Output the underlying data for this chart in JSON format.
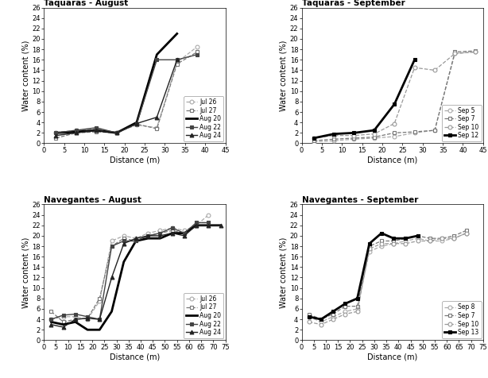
{
  "panels": [
    {
      "title": "Taquaras - August",
      "xlabel": "Distance (m)",
      "ylabel": "Water content (%)",
      "xlim": [
        0,
        45
      ],
      "ylim": [
        0,
        26
      ],
      "xticks": [
        0,
        5,
        10,
        15,
        20,
        25,
        30,
        35,
        40,
        45
      ],
      "yticks": [
        0,
        2,
        4,
        6,
        8,
        10,
        12,
        14,
        16,
        18,
        20,
        22,
        24,
        26
      ],
      "series": [
        {
          "label": "Jul 26",
          "x": [
            3,
            8,
            13,
            18,
            23,
            28,
            33,
            38
          ],
          "y": [
            2.1,
            2.5,
            2.8,
            2.1,
            3.5,
            3.0,
            15.5,
            18.5
          ],
          "color": "#aaaaaa",
          "linestyle": "--",
          "marker": "o",
          "markerfill": "none",
          "linewidth": 0.9
        },
        {
          "label": "Jul 27",
          "x": [
            3,
            8,
            13,
            18,
            23,
            28,
            33,
            38
          ],
          "y": [
            1.0,
            2.0,
            2.2,
            2.0,
            3.7,
            2.8,
            15.2,
            17.5
          ],
          "color": "#777777",
          "linestyle": "--",
          "marker": "s",
          "markerfill": "none",
          "linewidth": 0.9
        },
        {
          "label": "Aug 20",
          "x": [
            3,
            8,
            13,
            18,
            23,
            28,
            33
          ],
          "y": [
            2.0,
            2.2,
            2.5,
            2.0,
            4.0,
            17.0,
            21.0
          ],
          "color": "#000000",
          "linestyle": "-",
          "marker": null,
          "markerfill": "full",
          "linewidth": 2.0
        },
        {
          "label": "Aug 22",
          "x": [
            3,
            8,
            13,
            18,
            23,
            28,
            33,
            38
          ],
          "y": [
            2.0,
            2.5,
            3.0,
            2.0,
            3.7,
            16.0,
            16.0,
            17.0
          ],
          "color": "#444444",
          "linestyle": "-",
          "marker": "s",
          "markerfill": "full",
          "linewidth": 1.0
        },
        {
          "label": "Aug 24",
          "x": [
            3,
            8,
            13,
            18,
            23,
            28,
            33
          ],
          "y": [
            1.5,
            2.0,
            2.5,
            2.0,
            3.8,
            5.0,
            16.0
          ],
          "color": "#222222",
          "linestyle": "-",
          "marker": "^",
          "markerfill": "full",
          "linewidth": 1.0
        }
      ]
    },
    {
      "title": "Taquaras - September",
      "xlabel": "Distance (m)",
      "ylabel": "Water content (%)",
      "xlim": [
        0,
        45
      ],
      "ylim": [
        0,
        26
      ],
      "xticks": [
        0,
        5,
        10,
        15,
        20,
        25,
        30,
        35,
        40,
        45
      ],
      "yticks": [
        0,
        2,
        4,
        6,
        8,
        10,
        12,
        14,
        16,
        18,
        20,
        22,
        24,
        26
      ],
      "series": [
        {
          "label": "Sep 5",
          "x": [
            3,
            8,
            13,
            18,
            23,
            28,
            33,
            38,
            43
          ],
          "y": [
            0.3,
            0.5,
            0.8,
            1.0,
            1.3,
            2.0,
            2.5,
            17.2,
            17.5
          ],
          "color": "#aaaaaa",
          "linestyle": "--",
          "marker": "o",
          "markerfill": "none",
          "linewidth": 0.9
        },
        {
          "label": "Sep 7",
          "x": [
            3,
            8,
            13,
            18,
            23,
            28,
            33,
            38,
            43
          ],
          "y": [
            0.5,
            0.8,
            1.0,
            1.2,
            2.0,
            2.2,
            2.5,
            17.5,
            17.7
          ],
          "color": "#777777",
          "linestyle": "--",
          "marker": "s",
          "markerfill": "none",
          "linewidth": 0.9
        },
        {
          "label": "Sep 10",
          "x": [
            3,
            8,
            13,
            18,
            23,
            28,
            33,
            38,
            43
          ],
          "y": [
            1.0,
            1.5,
            1.5,
            1.8,
            3.8,
            14.5,
            14.0,
            17.2,
            17.5
          ],
          "color": "#999999",
          "linestyle": "--",
          "marker": "o",
          "markerfill": "none",
          "linewidth": 0.9
        },
        {
          "label": "Sep 12",
          "x": [
            3,
            8,
            13,
            18,
            23,
            28
          ],
          "y": [
            1.0,
            1.8,
            2.0,
            2.5,
            7.5,
            16.0
          ],
          "color": "#000000",
          "linestyle": "-",
          "marker": "s",
          "markerfill": "full",
          "linewidth": 2.0
        }
      ]
    },
    {
      "title": "Navegantes - August",
      "xlabel": "Distance (m)",
      "ylabel": "Water content (%)",
      "xlim": [
        0,
        75
      ],
      "ylim": [
        0,
        26
      ],
      "xticks": [
        0,
        5,
        10,
        15,
        20,
        25,
        30,
        35,
        40,
        45,
        50,
        55,
        60,
        65,
        70,
        75
      ],
      "yticks": [
        0,
        2,
        4,
        6,
        8,
        10,
        12,
        14,
        16,
        18,
        20,
        22,
        24,
        26
      ],
      "series": [
        {
          "label": "Jul 26",
          "x": [
            3,
            8,
            13,
            18,
            23,
            28,
            33,
            38,
            43,
            48,
            53,
            58,
            63,
            68
          ],
          "y": [
            4.0,
            4.5,
            4.5,
            4.0,
            7.5,
            19.0,
            20.0,
            19.5,
            20.5,
            21.0,
            21.5,
            21.0,
            22.0,
            24.0
          ],
          "color": "#aaaaaa",
          "linestyle": "--",
          "marker": "o",
          "markerfill": "none",
          "linewidth": 0.9
        },
        {
          "label": "Jul 27",
          "x": [
            3,
            8,
            13,
            18,
            23,
            28,
            33,
            38,
            43,
            48,
            53,
            58,
            63,
            68
          ],
          "y": [
            5.5,
            3.5,
            4.0,
            4.2,
            8.0,
            18.0,
            19.5,
            19.0,
            20.0,
            20.5,
            21.0,
            20.5,
            22.5,
            22.5
          ],
          "color": "#777777",
          "linestyle": "--",
          "marker": "s",
          "markerfill": "none",
          "linewidth": 0.9
        },
        {
          "label": "Aug 20",
          "x": [
            3,
            8,
            13,
            18,
            23,
            28,
            33,
            38,
            43,
            48,
            53,
            58,
            63,
            68,
            73
          ],
          "y": [
            3.5,
            3.0,
            3.5,
            2.0,
            2.0,
            5.5,
            15.0,
            19.0,
            19.5,
            19.5,
            20.5,
            20.5,
            22.0,
            22.0,
            22.0
          ],
          "color": "#000000",
          "linestyle": "-",
          "marker": null,
          "markerfill": "full",
          "linewidth": 2.0
        },
        {
          "label": "Aug 22",
          "x": [
            3,
            8,
            13,
            18,
            23,
            28,
            33,
            38,
            43,
            48,
            53,
            58,
            63,
            68
          ],
          "y": [
            4.0,
            4.8,
            5.0,
            4.5,
            4.0,
            18.0,
            19.0,
            19.0,
            20.0,
            20.5,
            21.5,
            20.5,
            22.5,
            22.5
          ],
          "color": "#444444",
          "linestyle": "-",
          "marker": "s",
          "markerfill": "full",
          "linewidth": 1.0
        },
        {
          "label": "Aug 24",
          "x": [
            3,
            8,
            13,
            18,
            23,
            28,
            33,
            38,
            43,
            48,
            53,
            58,
            63,
            68,
            73
          ],
          "y": [
            3.0,
            2.5,
            4.0,
            4.2,
            4.0,
            12.0,
            18.5,
            19.5,
            20.0,
            20.0,
            20.5,
            20.0,
            22.0,
            22.0,
            22.0
          ],
          "color": "#222222",
          "linestyle": "-",
          "marker": "^",
          "markerfill": "full",
          "linewidth": 1.0
        }
      ]
    },
    {
      "title": "Navegantes - September",
      "xlabel": "Distance (m)",
      "ylabel": "Water content (%)",
      "xlim": [
        0,
        75
      ],
      "ylim": [
        0,
        26
      ],
      "xticks": [
        0,
        5,
        10,
        15,
        20,
        25,
        30,
        35,
        40,
        45,
        50,
        55,
        60,
        65,
        70,
        75
      ],
      "yticks": [
        0,
        2,
        4,
        6,
        8,
        10,
        12,
        14,
        16,
        18,
        20,
        22,
        24,
        26
      ],
      "series": [
        {
          "label": "Sep 8",
          "x": [
            3,
            8,
            13,
            18,
            23,
            28,
            33,
            38,
            43,
            48,
            53,
            58,
            63,
            68
          ],
          "y": [
            4.5,
            3.5,
            4.5,
            5.5,
            6.0,
            17.0,
            18.0,
            18.5,
            19.0,
            19.5,
            19.0,
            19.0,
            19.5,
            20.5
          ],
          "color": "#aaaaaa",
          "linestyle": "--",
          "marker": "o",
          "markerfill": "none",
          "linewidth": 0.9
        },
        {
          "label": "Sep 7",
          "x": [
            3,
            8,
            13,
            18,
            23,
            28,
            33,
            38,
            43,
            48,
            53,
            58,
            63,
            68
          ],
          "y": [
            5.0,
            4.0,
            5.0,
            6.5,
            6.5,
            18.0,
            19.0,
            19.0,
            19.5,
            20.0,
            19.5,
            19.5,
            20.0,
            21.0
          ],
          "color": "#777777",
          "linestyle": "--",
          "marker": "s",
          "markerfill": "none",
          "linewidth": 0.9
        },
        {
          "label": "Sep 10",
          "x": [
            3,
            8,
            13,
            18,
            23,
            28,
            33,
            38,
            43,
            48,
            53,
            58,
            63,
            68
          ],
          "y": [
            3.5,
            3.0,
            4.0,
            5.0,
            5.5,
            17.5,
            18.5,
            18.5,
            18.5,
            19.0,
            19.0,
            19.5,
            19.5,
            20.5
          ],
          "color": "#999999",
          "linestyle": "--",
          "marker": "o",
          "markerfill": "none",
          "linewidth": 0.9
        },
        {
          "label": "Sep 13",
          "x": [
            3,
            8,
            13,
            18,
            23,
            28,
            33,
            38,
            43,
            48
          ],
          "y": [
            4.5,
            4.0,
            5.5,
            7.0,
            8.0,
            18.5,
            20.5,
            19.5,
            19.5,
            20.0
          ],
          "color": "#000000",
          "linestyle": "-",
          "marker": "s",
          "markerfill": "full",
          "linewidth": 2.0
        }
      ]
    }
  ]
}
